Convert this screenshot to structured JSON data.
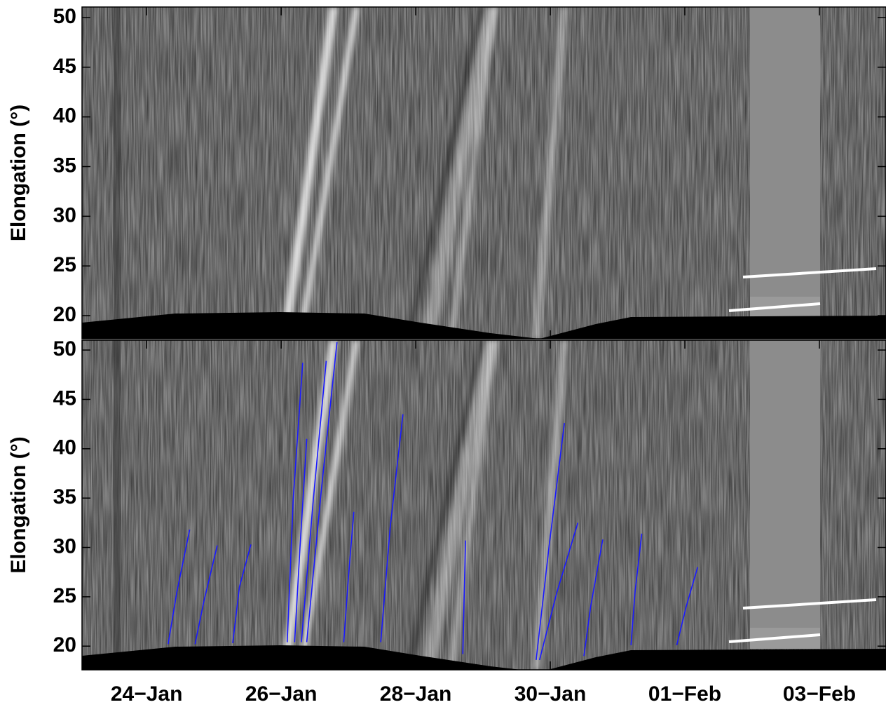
{
  "chart_data": [
    {
      "type": "line",
      "ylabel": "Elongation (°)",
      "xlim": [
        23.04,
        34.99
      ],
      "xticks": [
        24,
        26,
        28,
        30,
        32,
        34
      ],
      "ylim": [
        17.67,
        51.06
      ],
      "yticks": [
        20,
        25,
        30,
        35,
        40,
        45,
        50
      ],
      "series": []
    },
    {
      "type": "line",
      "ylabel": "Elongation (°)",
      "xlim": [
        23.04,
        34.99
      ],
      "xticks": [
        {
          "value": 24,
          "label": "24−Jan"
        },
        {
          "value": 26,
          "label": "26−Jan"
        },
        {
          "value": 28,
          "label": "28−Jan"
        },
        {
          "value": 30,
          "label": "30−Jan"
        },
        {
          "value": 32,
          "label": "01−Feb"
        },
        {
          "value": 34,
          "label": "03−Feb"
        }
      ],
      "ylim": [
        17.6,
        51.0
      ],
      "yticks": [
        20,
        25,
        30,
        35,
        40,
        45,
        50
      ],
      "color": "#1a1aff",
      "series": [
        {
          "x": [
            24.32,
            24.45,
            24.64
          ],
          "y": [
            20.2,
            25.5,
            31.8
          ]
        },
        {
          "x": [
            24.72,
            24.85,
            25.05
          ],
          "y": [
            20.2,
            24.5,
            30.2
          ]
        },
        {
          "x": [
            25.28,
            25.38,
            25.55
          ],
          "y": [
            20.3,
            26.0,
            30.3
          ]
        },
        {
          "x": [
            26.09,
            26.18,
            26.32
          ],
          "y": [
            20.4,
            35.0,
            48.7
          ]
        },
        {
          "x": [
            26.2,
            26.28,
            26.38
          ],
          "y": [
            20.4,
            30.0,
            41.0
          ]
        },
        {
          "x": [
            26.3,
            26.48,
            26.67
          ],
          "y": [
            20.4,
            35.0,
            48.9
          ]
        },
        {
          "x": [
            26.38,
            26.6,
            26.83
          ],
          "y": [
            20.4,
            36.0,
            50.8
          ]
        },
        {
          "x": [
            26.93,
            27.0,
            27.08
          ],
          "y": [
            20.4,
            27.0,
            33.6
          ]
        },
        {
          "x": [
            27.48,
            27.62,
            27.81
          ],
          "y": [
            20.4,
            32.0,
            43.5
          ]
        },
        {
          "x": [
            28.7,
            28.72,
            28.74
          ],
          "y": [
            19.2,
            25.0,
            30.7
          ]
        },
        {
          "x": [
            29.79,
            29.98,
            30.21
          ],
          "y": [
            18.6,
            30.0,
            42.6
          ]
        },
        {
          "x": [
            29.84,
            30.1,
            30.41
          ],
          "y": [
            18.6,
            25.5,
            32.5
          ]
        },
        {
          "x": [
            30.5,
            30.6,
            30.78
          ],
          "y": [
            19.0,
            24.0,
            30.8
          ]
        },
        {
          "x": [
            31.2,
            31.26,
            31.36
          ],
          "y": [
            20.1,
            25.5,
            31.4
          ]
        },
        {
          "x": [
            31.88,
            32.02,
            32.19
          ],
          "y": [
            20.1,
            24.0,
            28.0
          ]
        }
      ]
    }
  ]
}
